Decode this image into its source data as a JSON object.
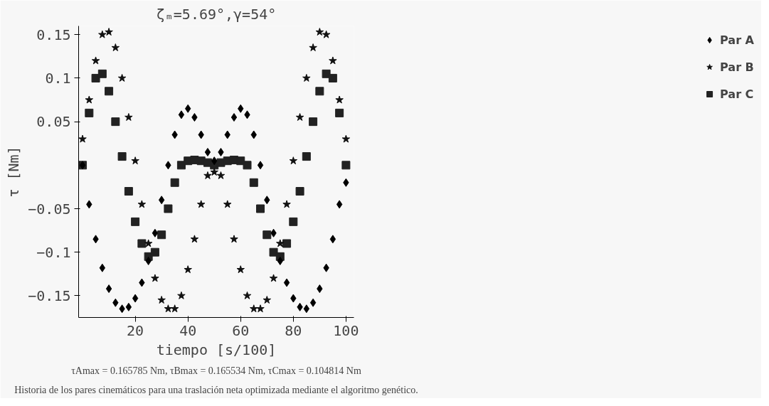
{
  "chart_data": {
    "type": "scatter",
    "title": "ζₘ=5.69°,γ=54°",
    "ylabel": "τ [Nm]",
    "xlabel": "tiempo [s/100]",
    "annotations": [
      "Historia de los pares cinemáticos para una traslación neta optimizada mediante el algoritmo genético.",
      "τAmax = 0.165785 Nm, τBmax = 0.165534 Nm, τCmax = 0.104814 Nm"
    ],
    "x": [
      0,
      2.5,
      5,
      7.5,
      10,
      12.5,
      15,
      17.5,
      20,
      22.5,
      25,
      27.5,
      30,
      32.5,
      35,
      37.5,
      40,
      42.5,
      45,
      47.5,
      50,
      52.5,
      55,
      57.5,
      60,
      62.5,
      65,
      67.5,
      70,
      72.5,
      75,
      77.5,
      80,
      82.5,
      85,
      87.5,
      90,
      92.5,
      95,
      97.5,
      100
    ],
    "series": [
      {
        "name": "Par A",
        "color": "#000000",
        "marker": "diamond",
        "values": [
          0,
          -0.045,
          -0.085,
          -0.118,
          -0.142,
          -0.158,
          -0.165,
          -0.163,
          -0.153,
          -0.135,
          -0.11,
          -0.078,
          -0.04,
          0.0,
          0.035,
          0.058,
          0.065,
          0.055,
          0.035,
          0.015,
          0.005,
          0.015,
          0.035,
          0.055,
          0.065,
          0.058,
          0.035,
          0.0,
          -0.04,
          -0.078,
          -0.11,
          -0.135,
          -0.153,
          -0.163,
          -0.165,
          -0.158,
          -0.142,
          -0.118,
          -0.085,
          -0.045,
          -0.02
        ]
      },
      {
        "name": "Par B",
        "color": "#111111",
        "marker": "star",
        "values": [
          0.03,
          0.075,
          0.12,
          0.15,
          0.153,
          0.135,
          0.1,
          0.055,
          0.005,
          -0.045,
          -0.09,
          -0.13,
          -0.155,
          -0.165,
          -0.165,
          -0.15,
          -0.12,
          -0.085,
          -0.045,
          -0.012,
          -0.008,
          -0.012,
          -0.045,
          -0.085,
          -0.12,
          -0.15,
          -0.165,
          -0.165,
          -0.155,
          -0.13,
          -0.09,
          -0.045,
          0.005,
          0.055,
          0.1,
          0.135,
          0.153,
          0.15,
          0.12,
          0.075,
          0.03
        ]
      },
      {
        "name": "Par C",
        "color": "#222222",
        "marker": "square",
        "values": [
          0,
          0.06,
          0.1,
          0.105,
          0.085,
          0.05,
          0.01,
          -0.03,
          -0.065,
          -0.09,
          -0.105,
          -0.1,
          -0.08,
          -0.05,
          -0.02,
          0.0,
          0.005,
          0.006,
          0.005,
          0.003,
          0.0,
          0.003,
          0.005,
          0.006,
          0.005,
          0.0,
          -0.02,
          -0.05,
          -0.08,
          -0.1,
          -0.105,
          -0.09,
          -0.065,
          -0.03,
          0.01,
          0.05,
          0.085,
          0.105,
          0.1,
          0.06,
          0
        ]
      }
    ],
    "xlim": [
      -1.5,
      103
    ],
    "ylim": [
      -0.175,
      0.16
    ],
    "xticks": [
      20,
      40,
      60,
      80,
      100
    ],
    "yticks": [
      -0.15,
      -0.1,
      -0.05,
      0.05,
      0.1,
      0.15
    ],
    "grid": false,
    "legend": "top right"
  }
}
